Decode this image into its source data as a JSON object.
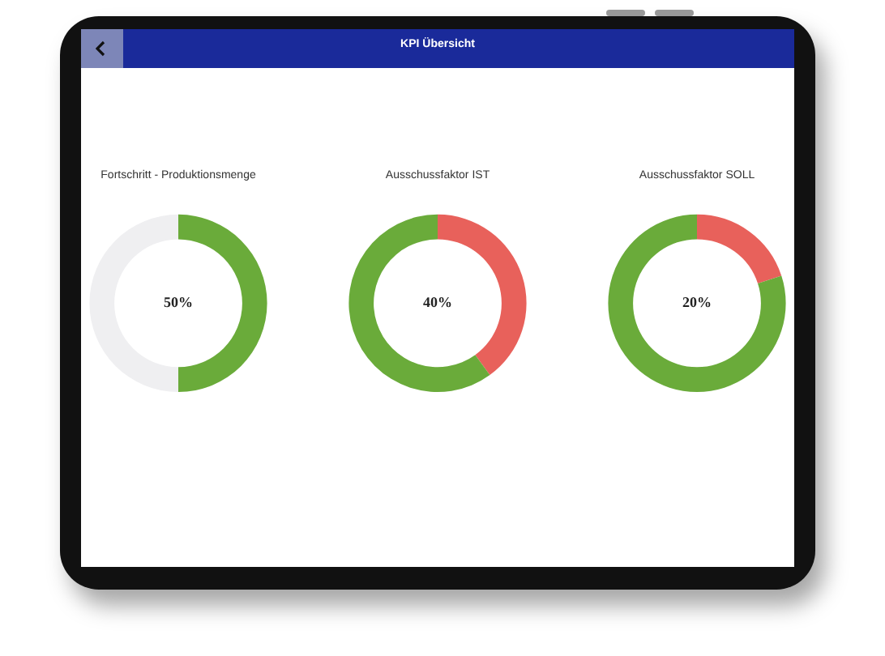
{
  "chart_data": [
    {
      "type": "donut",
      "title": "Fortschritt - Produktionsmenge",
      "categories": [
        null,
        null
      ],
      "values": [
        50,
        50
      ],
      "colors": [
        "#6aab3a",
        "#efeff1"
      ],
      "annotations": [
        "KPI Übersicht",
        "50%"
      ],
      "legend": false
    },
    {
      "type": "donut",
      "title": "Ausschussfaktor IST",
      "categories": [
        null,
        null
      ],
      "values": [
        40,
        60
      ],
      "colors": [
        "#e8615b",
        "#6aab3a"
      ],
      "annotations": [
        "40%"
      ],
      "legend": false
    },
    {
      "type": "donut",
      "title": "Ausschussfaktor SOLL",
      "categories": [
        null,
        null
      ],
      "values": [
        20,
        80
      ],
      "colors": [
        "#e8615b",
        "#6aab3a"
      ],
      "annotations": [
        "20%"
      ],
      "legend": false
    }
  ]
}
